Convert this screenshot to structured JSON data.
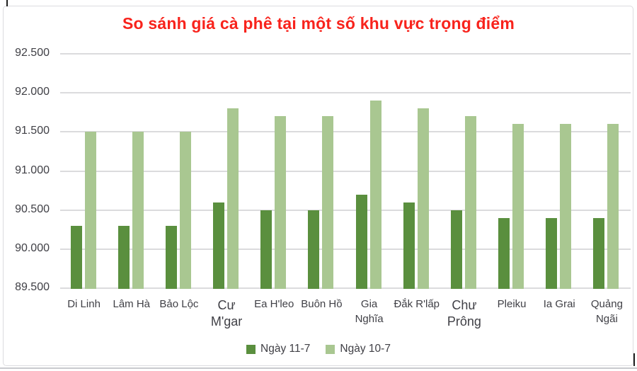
{
  "chart_data": {
    "type": "bar",
    "title": "So sánh giá cà phê tại một số khu vực trọng điểm",
    "title_color": "#f8231c",
    "axis_text_color": "#404046",
    "categories": [
      "Di Linh",
      "Lâm Hà",
      "Bảo Lộc",
      "Cư M'gar",
      "Ea H'leo",
      "Buôn Hồ",
      "Gia Nghĩa",
      "Đắk R'lấp",
      "Chư Prông",
      "Pleiku",
      "Ia Grai",
      "Quảng Ngãi"
    ],
    "series": [
      {
        "name": "Ngày 11-7",
        "color": "#5a8f3e",
        "values": [
          90300,
          90300,
          90300,
          90600,
          90500,
          90500,
          90700,
          90600,
          90500,
          90400,
          90400,
          90400
        ]
      },
      {
        "name": "Ngày 10-7",
        "color": "#a9c791",
        "values": [
          91500,
          91500,
          91500,
          91800,
          91700,
          91700,
          91900,
          91800,
          91700,
          91600,
          91600,
          91600
        ]
      }
    ],
    "ylim": [
      89500,
      92500
    ],
    "ytick_step": 500,
    "ytick_labels": [
      "89.500",
      "90.000",
      "90.500",
      "91.000",
      "91.500",
      "92.000",
      "92.500"
    ],
    "grid": true,
    "legend_position": "bottom"
  }
}
